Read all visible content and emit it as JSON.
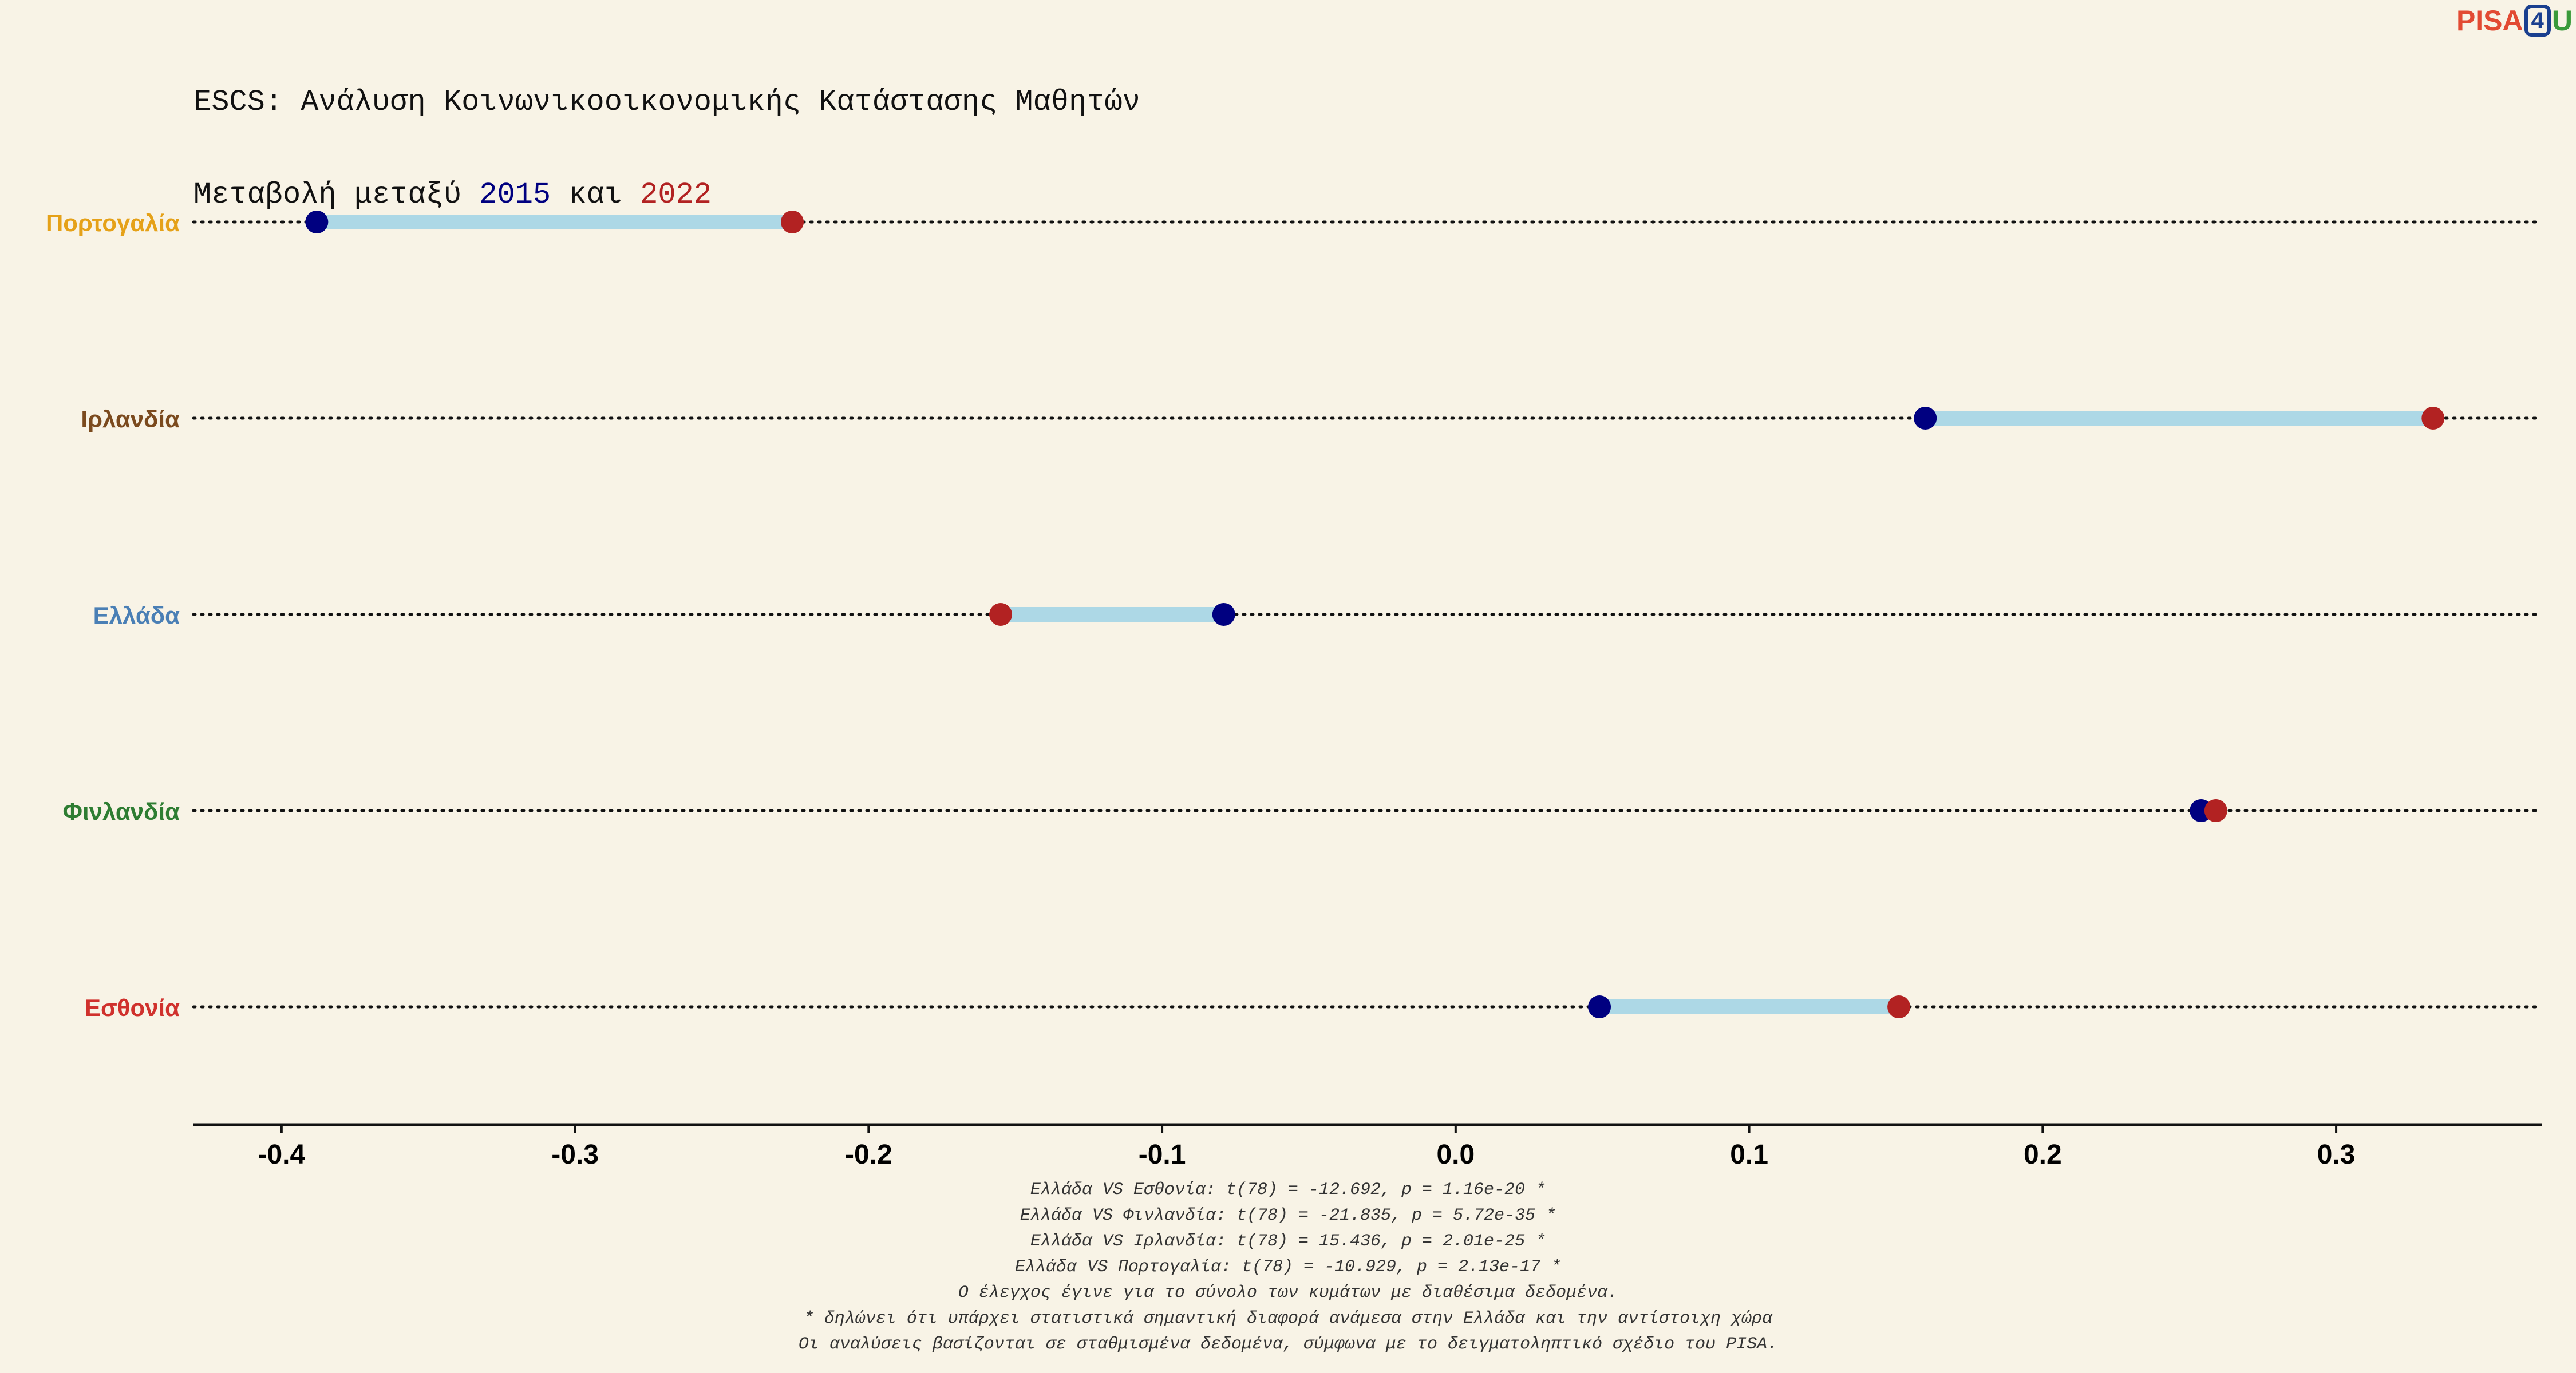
{
  "title": {
    "line1": "ESCS: Ανάλυση Κοινωνικοοικονομικής Κατάστασης Μαθητών",
    "line2_prefix": "Μεταβολή μεταξύ ",
    "line2_year1": "2015",
    "line2_middle": " και ",
    "line2_year2": "2022"
  },
  "logo": {
    "part1": "PISA",
    "part2": "4",
    "part3": "U"
  },
  "colors": {
    "year2015": "#000080",
    "year2022": "#b22222",
    "connector": "#add8e6",
    "logo_red": "#e24a33",
    "logo_blue": "#1a3f8f",
    "logo_green": "#3a9a3a"
  },
  "chart_data": {
    "type": "dumbbell",
    "xlim": [
      -0.43,
      0.37
    ],
    "x_ticks": [
      -0.4,
      -0.3,
      -0.2,
      -0.1,
      0.0,
      0.1,
      0.2,
      0.3
    ],
    "x_tick_labels": [
      "-0.4",
      "-0.3",
      "-0.2",
      "-0.1",
      "0.0",
      "0.1",
      "0.2",
      "0.3"
    ],
    "grid": "dotted horizontal lines per category",
    "categories": [
      {
        "name": "Πορτογαλία",
        "color": "#e5a118",
        "v2015": -0.388,
        "v2022": -0.226
      },
      {
        "name": "Ιρλανδία",
        "color": "#7b4a1e",
        "v2015": 0.16,
        "v2022": 0.333
      },
      {
        "name": "Ελλάδα",
        "color": "#4a7fb5",
        "v2015": -0.079,
        "v2022": -0.155
      },
      {
        "name": "Φινλανδία",
        "color": "#2e7d32",
        "v2015": 0.254,
        "v2022": 0.259
      },
      {
        "name": "Εσθονία",
        "color": "#d0312d",
        "v2015": 0.049,
        "v2022": 0.151
      }
    ],
    "series": [
      {
        "name": "2015",
        "color": "#000080"
      },
      {
        "name": "2022",
        "color": "#b22222"
      }
    ]
  },
  "footnotes": [
    "Ελλάδα VS Εσθονία: t(78) = -12.692, p = 1.16e-20 *",
    "Ελλάδα VS Φινλανδία: t(78) = -21.835, p = 5.72e-35 *",
    "Ελλάδα VS Ιρλανδία: t(78) = 15.436, p = 2.01e-25 *",
    "Ελλάδα VS Πορτογαλία: t(78) = -10.929, p = 2.13e-17 *",
    "Ο έλεγχος έγινε για το σύνολο των κυμάτων με διαθέσιμα δεδομένα.",
    "* δηλώνει ότι υπάρχει στατιστικά σημαντική διαφορά ανάμεσα στην Ελλάδα και την αντίστοιχη χώρα",
    "Οι αναλύσεις βασίζονται σε σταθμισμένα δεδομένα, σύμφωνα με το δειγματοληπτικό σχέδιο του PISA."
  ]
}
